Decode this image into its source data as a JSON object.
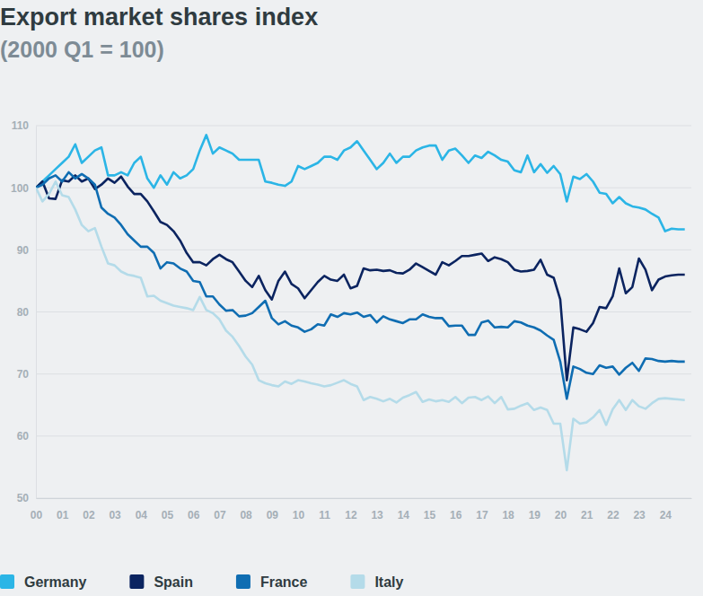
{
  "chart_data": {
    "type": "line",
    "title": "Export market shares index",
    "subtitle": "(2000 Q1 = 100)",
    "x": [
      2000,
      2000.25,
      2000.5,
      2000.75,
      2001,
      2001.25,
      2001.5,
      2001.75,
      2002,
      2002.25,
      2002.5,
      2002.75,
      2003,
      2003.25,
      2003.5,
      2003.75,
      2004,
      2004.25,
      2004.5,
      2004.75,
      2005,
      2005.25,
      2005.5,
      2005.75,
      2006,
      2006.25,
      2006.5,
      2006.75,
      2007,
      2007.25,
      2007.5,
      2007.75,
      2008,
      2008.25,
      2008.5,
      2008.75,
      2009,
      2009.25,
      2009.5,
      2009.75,
      2010,
      2010.25,
      2010.5,
      2010.75,
      2011,
      2011.25,
      2011.5,
      2011.75,
      2012,
      2012.25,
      2012.5,
      2012.75,
      2013,
      2013.25,
      2013.5,
      2013.75,
      2014,
      2014.25,
      2014.5,
      2014.75,
      2015,
      2015.25,
      2015.5,
      2015.75,
      2016,
      2016.25,
      2016.5,
      2016.75,
      2017,
      2017.25,
      2017.5,
      2017.75,
      2018,
      2018.25,
      2018.5,
      2018.75,
      2019,
      2019.25,
      2019.5,
      2019.75,
      2020,
      2020.25,
      2020.5,
      2020.75,
      2021,
      2021.25,
      2021.5,
      2021.75,
      2022,
      2022.25,
      2022.5,
      2022.75,
      2023,
      2023.25,
      2023.5,
      2023.75,
      2024,
      2024.25,
      2024.5,
      2024.75
    ],
    "series": [
      {
        "name": "Germany",
        "color": "#2bb5e6",
        "values": [
          100,
          101,
          102,
          103,
          104,
          105,
          107,
          104,
          105,
          106,
          106.5,
          102,
          102,
          102.5,
          102,
          104,
          105,
          101.5,
          100,
          102,
          100.5,
          102.5,
          101.5,
          102,
          103,
          106,
          108.5,
          105.5,
          106.5,
          106,
          105.5,
          104.5,
          104.5,
          104.5,
          104.5,
          101,
          100.8,
          100.5,
          100.3,
          101,
          103.5,
          103,
          103.5,
          104,
          105,
          105,
          104.5,
          106,
          106.5,
          107.5,
          106,
          104.5,
          103,
          104,
          105.5,
          104,
          105,
          105,
          106,
          106.5,
          106.8,
          106.8,
          104.5,
          106,
          106.3,
          105.2,
          104,
          105.2,
          104.8,
          105.8,
          105.2,
          104.5,
          104.2,
          102.8,
          102.5,
          105.2,
          102.5,
          103.8,
          102.4,
          103.5,
          102.2,
          97.8,
          101.8,
          101.4,
          102.2,
          101,
          99.2,
          99,
          97.5,
          98.5,
          97.5,
          97,
          96.8,
          96.5,
          95.8,
          95.2,
          93,
          93.4,
          93.3,
          93.3
        ]
      },
      {
        "name": "Spain",
        "color": "#0b2460",
        "values": [
          100,
          101,
          98.3,
          98.2,
          101.2,
          101,
          102,
          101,
          101.5,
          99.8,
          100.5,
          101.5,
          100.8,
          101.8,
          100.2,
          99,
          99,
          97.8,
          96.2,
          94.5,
          94,
          93,
          91.5,
          89.5,
          88,
          88,
          87.5,
          88.5,
          89.2,
          88.5,
          88,
          86.5,
          85,
          84,
          85.8,
          83.5,
          82,
          85,
          86.5,
          84.5,
          83.8,
          82.2,
          83.5,
          84.8,
          85.8,
          85.2,
          85,
          86,
          83.8,
          84.2,
          87,
          86.7,
          86.8,
          86.6,
          86.7,
          86.3,
          86.2,
          86.8,
          87.8,
          87.2,
          86.6,
          86,
          88,
          87.5,
          88.2,
          89,
          89,
          89.2,
          89.4,
          88.2,
          88.8,
          88.5,
          88,
          86.8,
          86.5,
          86.6,
          86.8,
          88.4,
          86,
          85.5,
          82,
          69,
          77.5,
          77.2,
          76.8,
          78.2,
          80.8,
          80.6,
          82.5,
          87,
          83,
          84,
          88.6,
          86.8,
          83.5,
          85.2,
          85.7,
          85.9,
          86,
          86
        ]
      },
      {
        "name": "France",
        "color": "#0f6db2",
        "values": [
          100,
          100.5,
          101.5,
          102,
          101,
          102.5,
          101.5,
          102.2,
          101.5,
          100.5,
          96.8,
          95.8,
          95.2,
          94,
          92.5,
          91.5,
          90.5,
          90.5,
          89.5,
          87,
          88,
          87.8,
          87,
          86.5,
          85,
          84.8,
          82.5,
          82.5,
          81.2,
          80.2,
          80.3,
          79.3,
          79.4,
          79.8,
          80.8,
          81.8,
          79,
          78,
          78.5,
          77.8,
          77.5,
          76.8,
          77.2,
          78,
          77.8,
          79.6,
          79.2,
          79.8,
          79.6,
          79.9,
          79.2,
          79.5,
          78.3,
          79.3,
          78.8,
          78.5,
          78.2,
          78.8,
          78.8,
          79.6,
          79.2,
          79,
          79,
          77.7,
          77.8,
          77.8,
          76.3,
          76.3,
          78.3,
          78.6,
          77.5,
          77.6,
          77.5,
          78.5,
          78.3,
          77.8,
          77.5,
          77,
          76.2,
          75.5,
          72,
          66,
          71.2,
          70.8,
          70.2,
          70,
          71.4,
          71,
          71.2,
          69.9,
          71,
          71.8,
          70.5,
          72.5,
          72.4,
          72.1,
          72,
          72.1,
          72,
          72
        ]
      },
      {
        "name": "Italy",
        "color": "#b4dbe9",
        "values": [
          100,
          97.8,
          99,
          101,
          98.8,
          98.5,
          96.5,
          94,
          93,
          93.5,
          90.5,
          87.8,
          87.5,
          86.5,
          86,
          85.8,
          85.5,
          82.5,
          82.6,
          81.8,
          81.4,
          81,
          80.8,
          80.6,
          80.3,
          82.4,
          80.3,
          79.8,
          78.8,
          77,
          76,
          74.5,
          72.8,
          71.5,
          69,
          68.5,
          68.2,
          68,
          68.8,
          68.4,
          69,
          68.8,
          68.5,
          68.3,
          68,
          68.2,
          68.6,
          69,
          68.4,
          68,
          65.8,
          66.3,
          66,
          65.6,
          66,
          65.4,
          66.2,
          66.6,
          67.1,
          65.5,
          65.9,
          65.6,
          65.8,
          65.5,
          66.3,
          65.3,
          66.2,
          66.3,
          65.8,
          66.4,
          65.3,
          66.3,
          64.3,
          64.4,
          64.9,
          65.3,
          64.2,
          64.6,
          64.2,
          62,
          62,
          54.5,
          62.8,
          62,
          62.2,
          63,
          64.2,
          61.8,
          64.3,
          65.8,
          64.2,
          65.8,
          64.8,
          64.4,
          65.3,
          66,
          66.1,
          66,
          65.9,
          65.8
        ]
      }
    ],
    "xlim": [
      2000,
      2025
    ],
    "xticks": [
      {
        "value": 2000,
        "label": "00"
      },
      {
        "value": 2001,
        "label": "01"
      },
      {
        "value": 2002,
        "label": "02"
      },
      {
        "value": 2003,
        "label": "03"
      },
      {
        "value": 2004,
        "label": "04"
      },
      {
        "value": 2005,
        "label": "05"
      },
      {
        "value": 2006,
        "label": "06"
      },
      {
        "value": 2007,
        "label": "07"
      },
      {
        "value": 2008,
        "label": "08"
      },
      {
        "value": 2009,
        "label": "09"
      },
      {
        "value": 2010,
        "label": "10"
      },
      {
        "value": 2011,
        "label": "11"
      },
      {
        "value": 2012,
        "label": "12"
      },
      {
        "value": 2013,
        "label": "13"
      },
      {
        "value": 2014,
        "label": "14"
      },
      {
        "value": 2015,
        "label": "15"
      },
      {
        "value": 2016,
        "label": "16"
      },
      {
        "value": 2017,
        "label": "17"
      },
      {
        "value": 2018,
        "label": "18"
      },
      {
        "value": 2019,
        "label": "19"
      },
      {
        "value": 2020,
        "label": "20"
      },
      {
        "value": 2021,
        "label": "21"
      },
      {
        "value": 2022,
        "label": "22"
      },
      {
        "value": 2023,
        "label": "23"
      },
      {
        "value": 2024,
        "label": "24"
      }
    ],
    "ylim": [
      50,
      110
    ],
    "yticks": [
      50,
      60,
      70,
      80,
      90,
      100,
      110
    ],
    "grid": true,
    "legend": "bottom"
  }
}
